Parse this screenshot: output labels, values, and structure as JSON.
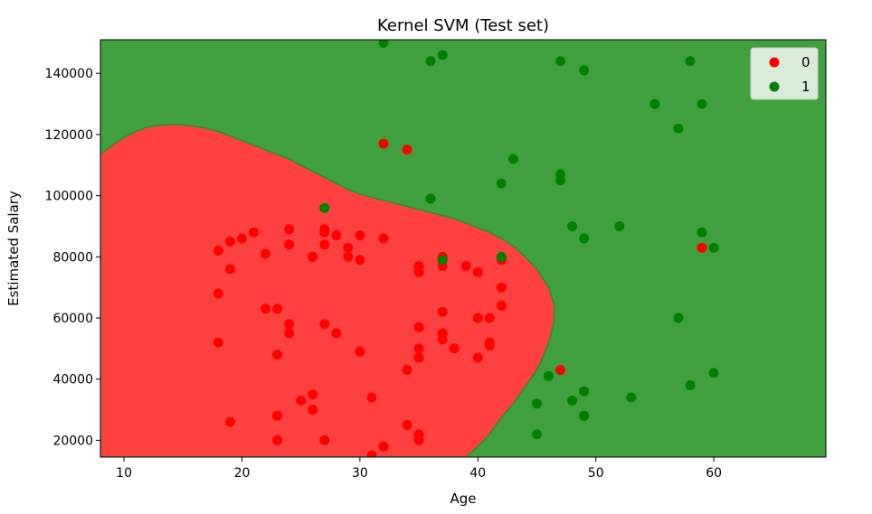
{
  "chart_data": {
    "type": "scatter",
    "title": "Kernel SVM (Test set)",
    "xlabel": "Age",
    "ylabel": "Estimated Salary",
    "xlim": [
      8,
      69.5
    ],
    "ylim": [
      14500,
      151000
    ],
    "x_ticks": [
      10,
      20,
      30,
      40,
      50,
      60
    ],
    "y_ticks": [
      20000,
      40000,
      60000,
      80000,
      100000,
      120000,
      140000
    ],
    "legend_position": "top-right",
    "region_colors": {
      "0": "#ff4040",
      "1": "#40a040"
    },
    "region_boundary": [
      [
        8,
        113500
      ],
      [
        9,
        116500
      ],
      [
        10,
        119000
      ],
      [
        11,
        121000
      ],
      [
        12,
        122500
      ],
      [
        13,
        123000
      ],
      [
        14,
        123300
      ],
      [
        15,
        123200
      ],
      [
        16,
        122700
      ],
      [
        17,
        122000
      ],
      [
        18,
        121000
      ],
      [
        19,
        119500
      ],
      [
        20,
        118000
      ],
      [
        21,
        116500
      ],
      [
        22,
        115000
      ],
      [
        23,
        113500
      ],
      [
        24,
        112000
      ],
      [
        25,
        110000
      ],
      [
        26,
        108000
      ],
      [
        27,
        106000
      ],
      [
        28,
        104000
      ],
      [
        29,
        102000
      ],
      [
        30,
        100500
      ],
      [
        31,
        99500
      ],
      [
        32,
        98500
      ],
      [
        33,
        97500
      ],
      [
        34,
        96500
      ],
      [
        35,
        95500
      ],
      [
        36,
        94500
      ],
      [
        37,
        93500
      ],
      [
        38,
        92500
      ],
      [
        39,
        91000
      ],
      [
        40,
        89500
      ],
      [
        41,
        88000
      ],
      [
        42,
        86000
      ],
      [
        43,
        83500
      ],
      [
        44,
        80000
      ],
      [
        45,
        76000
      ],
      [
        46,
        70000
      ],
      [
        46.5,
        64000
      ],
      [
        46.4,
        58000
      ],
      [
        46,
        52000
      ],
      [
        45.5,
        47000
      ],
      [
        45,
        43000
      ],
      [
        44,
        37500
      ],
      [
        43,
        32000
      ],
      [
        42,
        27500
      ],
      [
        41,
        22000
      ],
      [
        40,
        18000
      ],
      [
        39,
        14500
      ]
    ],
    "series": [
      {
        "name": "0",
        "color": "#ff0000",
        "points": [
          [
            18,
            82000
          ],
          [
            19,
            85000
          ],
          [
            20,
            86000
          ],
          [
            21,
            88000
          ],
          [
            22,
            81000
          ],
          [
            24,
            89000
          ],
          [
            24,
            84000
          ],
          [
            27,
            89000
          ],
          [
            27,
            88000
          ],
          [
            27,
            84000
          ],
          [
            28,
            87000
          ],
          [
            29,
            83000
          ],
          [
            29,
            80000
          ],
          [
            30,
            87000
          ],
          [
            30,
            79000
          ],
          [
            26,
            80000
          ],
          [
            32,
            86000
          ],
          [
            32,
            117000
          ],
          [
            34,
            115000
          ],
          [
            19,
            76000
          ],
          [
            18,
            68000
          ],
          [
            22,
            63000
          ],
          [
            23,
            63000
          ],
          [
            24,
            58000
          ],
          [
            24,
            55000
          ],
          [
            27,
            58000
          ],
          [
            28,
            55000
          ],
          [
            18,
            52000
          ],
          [
            23,
            48000
          ],
          [
            30,
            49000
          ],
          [
            25,
            33000
          ],
          [
            26,
            35000
          ],
          [
            26,
            30000
          ],
          [
            23,
            28000
          ],
          [
            19,
            26000
          ],
          [
            23,
            20000
          ],
          [
            27,
            20000
          ],
          [
            31,
            34000
          ],
          [
            31,
            15000
          ],
          [
            32,
            18000
          ],
          [
            34,
            43000
          ],
          [
            34,
            25000
          ],
          [
            35,
            77000
          ],
          [
            35,
            75000
          ],
          [
            35,
            57000
          ],
          [
            35,
            50000
          ],
          [
            35,
            47000
          ],
          [
            35,
            22000
          ],
          [
            35,
            20000
          ],
          [
            37,
            80000
          ],
          [
            37,
            77000
          ],
          [
            37,
            62000
          ],
          [
            37,
            55000
          ],
          [
            37,
            53000
          ],
          [
            38,
            50000
          ],
          [
            39,
            77000
          ],
          [
            40,
            75000
          ],
          [
            40,
            60000
          ],
          [
            40,
            47000
          ],
          [
            41,
            60000
          ],
          [
            41,
            52000
          ],
          [
            41,
            51000
          ],
          [
            42,
            79000
          ],
          [
            42,
            70000
          ],
          [
            42,
            64000
          ],
          [
            47,
            43000
          ],
          [
            59,
            83000
          ]
        ]
      },
      {
        "name": "1",
        "color": "#008000",
        "points": [
          [
            32,
            150000
          ],
          [
            36,
            144000
          ],
          [
            37,
            146000
          ],
          [
            47,
            144000
          ],
          [
            49,
            141000
          ],
          [
            58,
            144000
          ],
          [
            55,
            130000
          ],
          [
            59,
            130000
          ],
          [
            57,
            122000
          ],
          [
            43,
            112000
          ],
          [
            47,
            107000
          ],
          [
            47,
            105000
          ],
          [
            42,
            104000
          ],
          [
            36,
            99000
          ],
          [
            27,
            96000
          ],
          [
            48,
            90000
          ],
          [
            52,
            90000
          ],
          [
            49,
            86000
          ],
          [
            59,
            88000
          ],
          [
            60,
            83000
          ],
          [
            42,
            80000
          ],
          [
            37,
            79000
          ],
          [
            57,
            60000
          ],
          [
            46,
            41000
          ],
          [
            60,
            42000
          ],
          [
            58,
            38000
          ],
          [
            45,
            32000
          ],
          [
            48,
            33000
          ],
          [
            49,
            36000
          ],
          [
            53,
            34000
          ],
          [
            49,
            28000
          ],
          [
            45,
            22000
          ]
        ]
      }
    ]
  }
}
